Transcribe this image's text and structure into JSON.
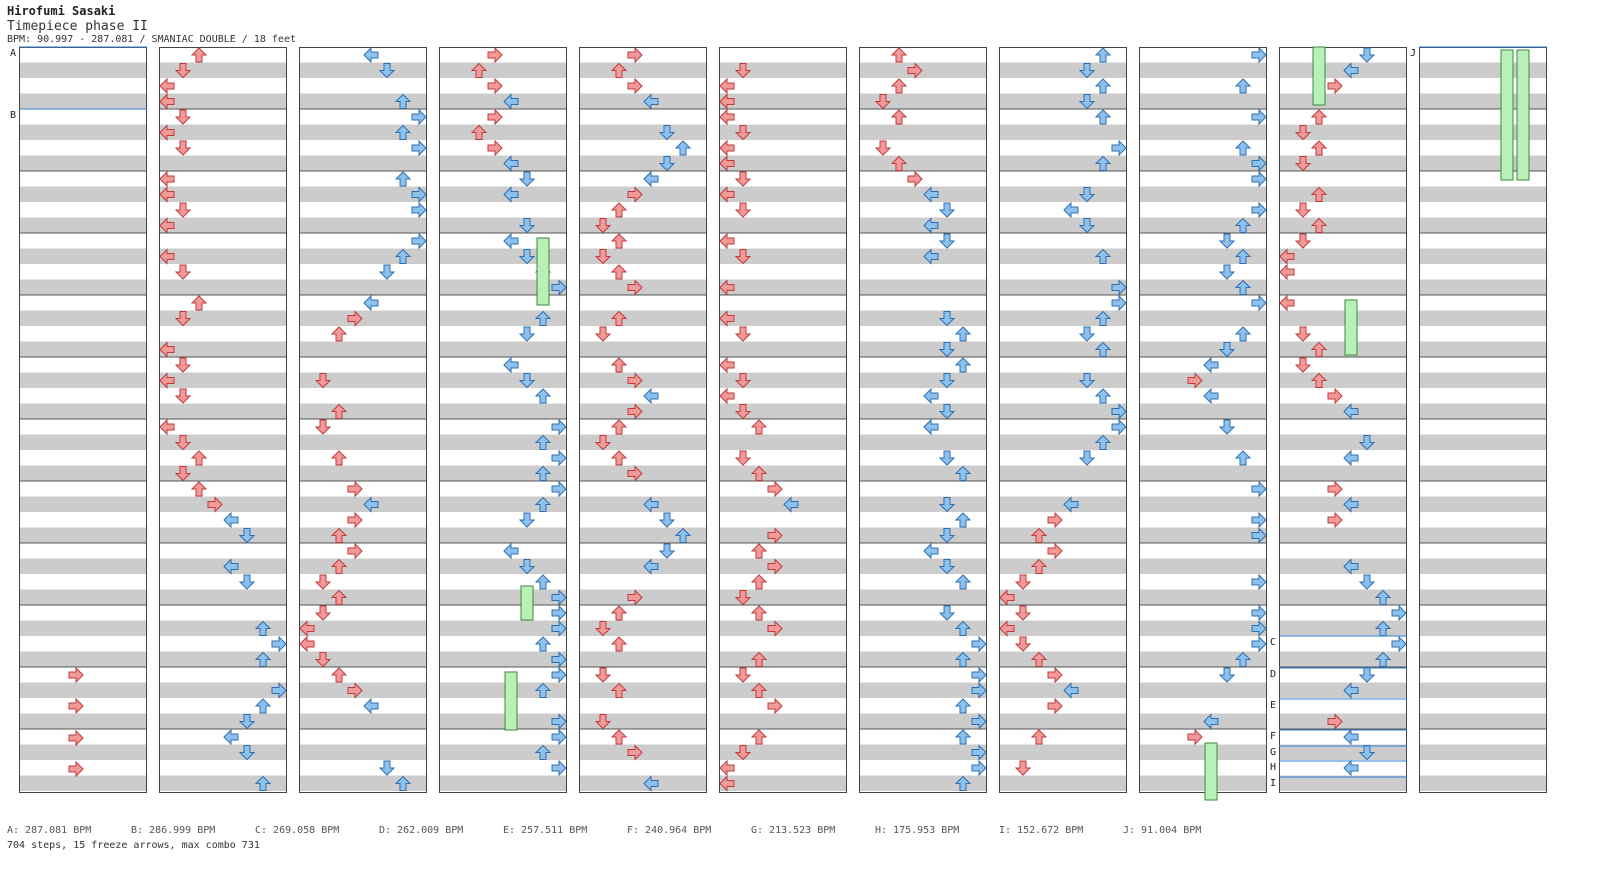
{
  "song": {
    "artist": "Hirofumi Sasaki",
    "title": "Timepiece phase II",
    "meta": "BPM: 90.997 - 287.081 / SMANIAC DOUBLE / 18 feet"
  },
  "bpm_changes": [
    {
      "label": "A",
      "text": "A: 287.081 BPM"
    },
    {
      "label": "B",
      "text": "B: 286.999 BPM"
    },
    {
      "label": "C",
      "text": "C: 269.058 BPM"
    },
    {
      "label": "D",
      "text": "D: 262.009 BPM"
    },
    {
      "label": "E",
      "text": "E: 257.511 BPM"
    },
    {
      "label": "F",
      "text": "F: 240.964 BPM"
    },
    {
      "label": "G",
      "text": "G: 213.523 BPM"
    },
    {
      "label": "H",
      "text": "H: 175.953 BPM"
    },
    {
      "label": "I",
      "text": "I: 152.672 BPM"
    },
    {
      "label": "J",
      "text": "J: 91.004 BPM"
    }
  ],
  "summary": "704 steps, 15 freeze arrows, max combo 731",
  "colors": {
    "left_pad_arrow": "#f29a9a",
    "right_pad_arrow": "#8ec2ee",
    "freeze": "#b8f0b8",
    "shock_green": "#58d858",
    "stripe": "#cccccc",
    "bpm_line": "#2f7fd8"
  }
}
